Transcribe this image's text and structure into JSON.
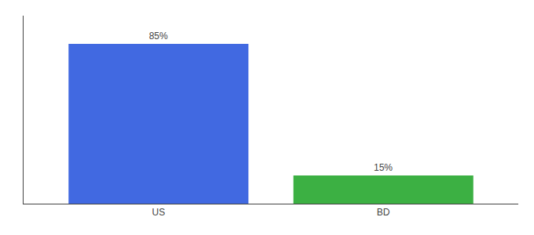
{
  "chart_data": {
    "type": "bar",
    "categories": [
      "US",
      "BD"
    ],
    "values": [
      85,
      15
    ],
    "value_labels": [
      "85%",
      "15%"
    ],
    "colors": [
      "#4169E1",
      "#3CB043"
    ],
    "ylim": [
      0,
      100
    ],
    "data_labels": true,
    "tick_labels": "x",
    "grid": false
  }
}
